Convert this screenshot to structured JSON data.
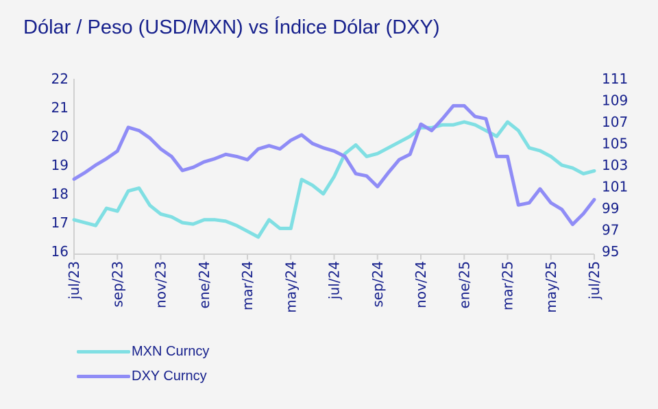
{
  "chart_data": {
    "type": "line",
    "title": "Dólar / Peso (USD/MXN) vs Índice Dólar (DXY)",
    "x_tick_labels": [
      "jul/23",
      "sep/23",
      "nov/23",
      "ene/24",
      "mar/24",
      "may/24",
      "jul/24",
      "sep/24",
      "nov/24",
      "ene/25",
      "mar/25",
      "may/25",
      "jul/25"
    ],
    "x_months": [
      0,
      0.5,
      1,
      1.5,
      2,
      2.5,
      3,
      3.5,
      4,
      4.5,
      5,
      5.5,
      6,
      6.5,
      7,
      7.5,
      8,
      8.5,
      9,
      9.5,
      10,
      10.5,
      11,
      11.5,
      12,
      12.5,
      13,
      13.5,
      14,
      14.5,
      15,
      15.5,
      16,
      16.5,
      17,
      17.5,
      18,
      18.5,
      19,
      19.5,
      20,
      20.5,
      21,
      21.5,
      22,
      22.5,
      23,
      23.5,
      24
    ],
    "y_left": {
      "ylim": [
        16,
        22
      ],
      "ticks": [
        16,
        17,
        18,
        19,
        20,
        21,
        22
      ]
    },
    "y_right": {
      "ylim": [
        95,
        111
      ],
      "ticks": [
        95,
        97,
        99,
        101,
        103,
        105,
        107,
        109,
        111
      ]
    },
    "grid": false,
    "legend_placement": "bottom-left",
    "series": [
      {
        "name": "MXN Curncy",
        "axis": "left",
        "color": "#80dfe3",
        "values": [
          17.1,
          17.0,
          16.9,
          17.5,
          17.4,
          18.1,
          18.2,
          17.6,
          17.3,
          17.2,
          17.0,
          16.95,
          17.1,
          17.1,
          17.05,
          16.9,
          16.7,
          16.5,
          17.1,
          16.8,
          16.8,
          18.5,
          18.3,
          18.0,
          18.6,
          19.4,
          19.7,
          19.3,
          19.4,
          19.6,
          19.8,
          20.0,
          20.3,
          20.3,
          20.4,
          20.4,
          20.5,
          20.4,
          20.2,
          20.0,
          20.5,
          20.2,
          19.6,
          19.5,
          19.3,
          19.0,
          18.9,
          18.7,
          18.8
        ]
      },
      {
        "name": "DXY Curncy",
        "axis": "right",
        "color": "#8f8cf6",
        "values": [
          101.7,
          102.3,
          103.0,
          103.6,
          104.3,
          106.5,
          106.2,
          105.5,
          104.5,
          103.8,
          102.5,
          102.8,
          103.3,
          103.6,
          104.0,
          103.8,
          103.5,
          104.5,
          104.8,
          104.5,
          105.3,
          105.8,
          105.0,
          104.6,
          104.3,
          103.8,
          102.2,
          102.0,
          101.0,
          102.3,
          103.5,
          104.0,
          106.8,
          106.2,
          107.3,
          108.5,
          108.5,
          107.5,
          107.3,
          103.8,
          103.8,
          99.3,
          99.5,
          100.8,
          99.5,
          98.9,
          97.5,
          98.5,
          99.8
        ]
      }
    ]
  }
}
